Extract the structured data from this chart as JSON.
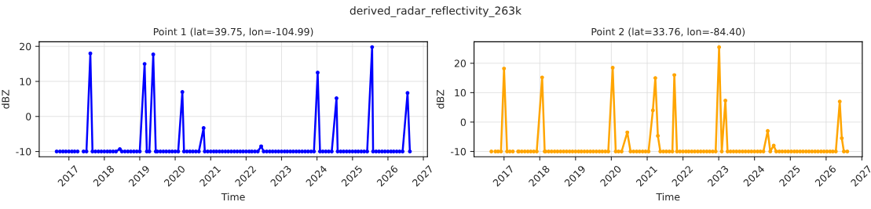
{
  "chart_data": [
    {
      "type": "line",
      "title": "Point 1 (lat=39.75, lon=-104.99)",
      "xlabel": "Time",
      "ylabel": "dBZ",
      "annotations": [
        "derived_radar_reflectivity_263k"
      ],
      "grid": true,
      "marker": "circle",
      "line_style": "solid",
      "xlim": [
        "2016-03-01",
        "2027-02-12"
      ],
      "ylim": [
        -11.5,
        21.3
      ],
      "yticks": [
        -10,
        0,
        10,
        20
      ],
      "xticks": [
        {
          "value": "2017-01-01",
          "label": "2017"
        },
        {
          "value": "2018-01-01",
          "label": "2018"
        },
        {
          "value": "2019-01-01",
          "label": "2019"
        },
        {
          "value": "2020-01-01",
          "label": "2020"
        },
        {
          "value": "2021-01-01",
          "label": "2021"
        },
        {
          "value": "2022-01-01",
          "label": "2022"
        },
        {
          "value": "2023-01-01",
          "label": "2023"
        },
        {
          "value": "2024-01-01",
          "label": "2024"
        },
        {
          "value": "2025-01-01",
          "label": "2025"
        },
        {
          "value": "2026-01-01",
          "label": "2026"
        },
        {
          "value": "2027-01-01",
          "label": "2027"
        }
      ],
      "series": [
        {
          "color": "#0000ff",
          "x": [
            "2016-08-28",
            "2016-09-15",
            "2016-10-01",
            "2016-11-01",
            "2016-12-01",
            "2017-01-01",
            "2017-02-01",
            "2017-03-01",
            "2017-04-01",
            "2017-05-01",
            "2017-06-01",
            "2017-07-01",
            "2017-08-10",
            "2017-09-01",
            "2017-10-01",
            "2017-11-01",
            "2017-12-01",
            "2018-01-01",
            "2018-02-01",
            "2018-03-01",
            "2018-04-01",
            "2018-05-01",
            "2018-06-10",
            "2018-07-01",
            "2018-08-01",
            "2018-09-01",
            "2018-10-01",
            "2018-11-01",
            "2018-12-01",
            "2019-01-01",
            "2019-02-20",
            "2019-03-15",
            "2019-04-10",
            "2019-05-20",
            "2019-06-15",
            "2019-07-01",
            "2019-08-01",
            "2019-09-01",
            "2019-10-01",
            "2019-11-01",
            "2019-12-01",
            "2020-01-01",
            "2020-02-01",
            "2020-03-15",
            "2020-04-01",
            "2020-05-01",
            "2020-06-01",
            "2020-07-01",
            "2020-08-01",
            "2020-09-01",
            "2020-10-20",
            "2020-11-01",
            "2020-12-01",
            "2021-01-01",
            "2021-02-01",
            "2021-03-01",
            "2021-04-01",
            "2021-05-01",
            "2021-06-01",
            "2021-07-01",
            "2021-08-01",
            "2021-09-01",
            "2021-10-01",
            "2021-11-01",
            "2021-12-01",
            "2022-01-01",
            "2022-02-01",
            "2022-03-01",
            "2022-04-01",
            "2022-05-01",
            "2022-06-05",
            "2022-07-01",
            "2022-08-01",
            "2022-09-01",
            "2022-10-01",
            "2022-11-01",
            "2022-12-01",
            "2023-01-01",
            "2023-02-01",
            "2023-03-01",
            "2023-04-01",
            "2023-05-01",
            "2023-06-01",
            "2023-07-01",
            "2023-08-01",
            "2023-09-01",
            "2023-10-01",
            "2023-11-01",
            "2023-12-01",
            "2024-01-08",
            "2024-02-01",
            "2024-03-01",
            "2024-04-01",
            "2024-05-01",
            "2024-06-01",
            "2024-07-20",
            "2024-08-01",
            "2024-09-01",
            "2024-10-01",
            "2024-11-01",
            "2024-12-01",
            "2025-01-01",
            "2025-02-01",
            "2025-03-01",
            "2025-04-01",
            "2025-05-01",
            "2025-06-01",
            "2025-07-22",
            "2025-08-01",
            "2025-09-01",
            "2025-10-01",
            "2025-11-01",
            "2025-12-01",
            "2026-01-01",
            "2026-02-01",
            "2026-03-01",
            "2026-04-01",
            "2026-05-01",
            "2026-06-01",
            "2026-07-22",
            "2026-08-15"
          ],
          "values": [
            -10,
            null,
            -10,
            -10,
            -10,
            -10,
            -10,
            -10,
            -10,
            null,
            -10,
            -10,
            18,
            -10,
            -10,
            -10,
            -10,
            -10,
            -10,
            -10,
            -10,
            -10,
            -9.3,
            -10,
            -10,
            -10,
            -10,
            -10,
            -10,
            -10,
            15,
            -10,
            -10,
            17.7,
            -10,
            -10,
            -10,
            -10,
            -10,
            -10,
            -10,
            -10,
            -10,
            7,
            -10,
            -10,
            -10,
            -10,
            -10,
            -10,
            -3.3,
            -10,
            -10,
            -10,
            -10,
            -10,
            -10,
            -10,
            -10,
            -10,
            -10,
            -10,
            -10,
            -10,
            -10,
            -10,
            -10,
            -10,
            -10,
            -10,
            -8.5,
            -10,
            -10,
            -10,
            -10,
            -10,
            -10,
            -10,
            -10,
            -10,
            -10,
            -10,
            -10,
            -10,
            -10,
            -10,
            -10,
            -10,
            -10,
            12.5,
            -10,
            -10,
            -10,
            -10,
            -10,
            5.2,
            -10,
            -10,
            -10,
            -10,
            -10,
            -10,
            -10,
            -10,
            -10,
            -10,
            -10,
            19.8,
            -10,
            -10,
            -10,
            -10,
            -10,
            -10,
            -10,
            -10,
            -10,
            -10,
            -10,
            6.7,
            -10
          ]
        }
      ]
    },
    {
      "type": "line",
      "title": "Point 2 (lat=33.76, lon=-84.40)",
      "xlabel": "Time",
      "ylabel": "dBZ",
      "grid": true,
      "marker": "circle",
      "line_style": "solid",
      "xlim": [
        "2016-03-01",
        "2027-01-05"
      ],
      "ylim": [
        -11.8,
        27.3
      ],
      "yticks": [
        -10,
        0,
        10,
        20
      ],
      "xticks": [
        {
          "value": "2017-01-01",
          "label": "2017"
        },
        {
          "value": "2018-01-01",
          "label": "2018"
        },
        {
          "value": "2019-01-01",
          "label": "2019"
        },
        {
          "value": "2020-01-01",
          "label": "2020"
        },
        {
          "value": "2021-01-01",
          "label": "2021"
        },
        {
          "value": "2022-01-01",
          "label": "2022"
        },
        {
          "value": "2023-01-01",
          "label": "2023"
        },
        {
          "value": "2024-01-01",
          "label": "2024"
        },
        {
          "value": "2025-01-01",
          "label": "2025"
        },
        {
          "value": "2026-01-01",
          "label": "2026"
        },
        {
          "value": "2027-01-01",
          "label": "2027"
        }
      ],
      "series": [
        {
          "color": "#ffa500",
          "x": [
            "2016-08-25",
            "2016-09-12",
            "2016-10-05",
            "2016-11-01",
            "2016-12-01",
            "2017-01-01",
            "2017-02-01",
            "2017-03-01",
            "2017-04-01",
            "2017-04-20",
            "2017-05-25",
            "2017-06-01",
            "2017-07-01",
            "2017-08-01",
            "2017-09-01",
            "2017-10-01",
            "2017-11-01",
            "2017-12-01",
            "2018-01-25",
            "2018-02-20",
            "2018-03-01",
            "2018-04-01",
            "2018-05-01",
            "2018-06-01",
            "2018-07-01",
            "2018-08-01",
            "2018-09-01",
            "2018-10-01",
            "2018-11-01",
            "2018-12-01",
            "2019-01-01",
            "2019-02-01",
            "2019-03-01",
            "2019-04-01",
            "2019-05-01",
            "2019-06-01",
            "2019-07-01",
            "2019-08-01",
            "2019-09-01",
            "2019-10-01",
            "2019-11-01",
            "2019-12-01",
            "2020-01-15",
            "2020-02-15",
            "2020-03-15",
            "2020-04-15",
            "2020-06-12",
            "2020-07-15",
            "2020-08-15",
            "2020-09-15",
            "2020-10-15",
            "2020-11-15",
            "2020-12-15",
            "2021-01-15",
            "2021-02-28",
            "2021-03-25",
            "2021-04-20",
            "2021-05-15",
            "2021-06-15",
            "2021-07-15",
            "2021-08-15",
            "2021-09-15",
            "2021-10-05",
            "2021-11-01",
            "2021-12-01",
            "2022-01-01",
            "2022-02-01",
            "2022-03-01",
            "2022-04-01",
            "2022-05-01",
            "2022-06-01",
            "2022-07-01",
            "2022-08-01",
            "2022-09-01",
            "2022-10-01",
            "2022-11-01",
            "2022-12-01",
            "2023-01-05",
            "2023-02-01",
            "2023-03-10",
            "2023-04-01",
            "2023-05-01",
            "2023-06-01",
            "2023-07-01",
            "2023-08-01",
            "2023-09-01",
            "2023-10-01",
            "2023-11-01",
            "2023-12-01",
            "2024-01-01",
            "2024-02-01",
            "2024-03-01",
            "2024-04-01",
            "2024-05-15",
            "2024-06-10",
            "2024-07-15",
            "2024-08-10",
            "2024-09-10",
            "2024-10-10",
            "2024-11-10",
            "2024-12-10",
            "2025-01-10",
            "2025-02-10",
            "2025-03-10",
            "2025-04-10",
            "2025-05-10",
            "2025-06-10",
            "2025-07-10",
            "2025-08-10",
            "2025-09-10",
            "2025-10-10",
            "2025-11-10",
            "2025-12-10",
            "2026-01-10",
            "2026-02-10",
            "2026-03-10",
            "2026-04-10",
            "2026-05-20",
            "2026-06-10",
            "2026-07-01",
            "2026-08-05"
          ],
          "values": [
            -10,
            null,
            -10,
            -10,
            -10,
            18.2,
            -10,
            -10,
            -10,
            null,
            -10,
            -10,
            -10,
            -10,
            -10,
            -10,
            -10,
            -10,
            15.2,
            -10,
            -10,
            -10,
            -10,
            -10,
            -10,
            -10,
            -10,
            -10,
            -10,
            -10,
            -10,
            -10,
            -10,
            -10,
            -10,
            -10,
            -10,
            -10,
            -10,
            -10,
            -10,
            -10,
            18.5,
            -10,
            -10,
            -10,
            -3.5,
            -10,
            -10,
            -10,
            -10,
            -10,
            -10,
            -10,
            4,
            15,
            -4.7,
            -10,
            -10,
            -10,
            -10,
            -10,
            16,
            -10,
            -10,
            -10,
            -10,
            -10,
            -10,
            -10,
            -10,
            -10,
            -10,
            -10,
            -10,
            -10,
            -10,
            25.5,
            -10,
            7.3,
            -10,
            -10,
            -10,
            -10,
            -10,
            -10,
            -10,
            -10,
            -10,
            -10,
            -10,
            -10,
            -10,
            -3,
            -10,
            -8,
            -10,
            -10,
            -10,
            -10,
            -10,
            -10,
            -10,
            -10,
            -10,
            -10,
            -10,
            -10,
            -10,
            -10,
            -10,
            -10,
            -10,
            -10,
            -10,
            -10,
            -10,
            7,
            -5.5,
            -10,
            -10
          ]
        }
      ]
    }
  ]
}
